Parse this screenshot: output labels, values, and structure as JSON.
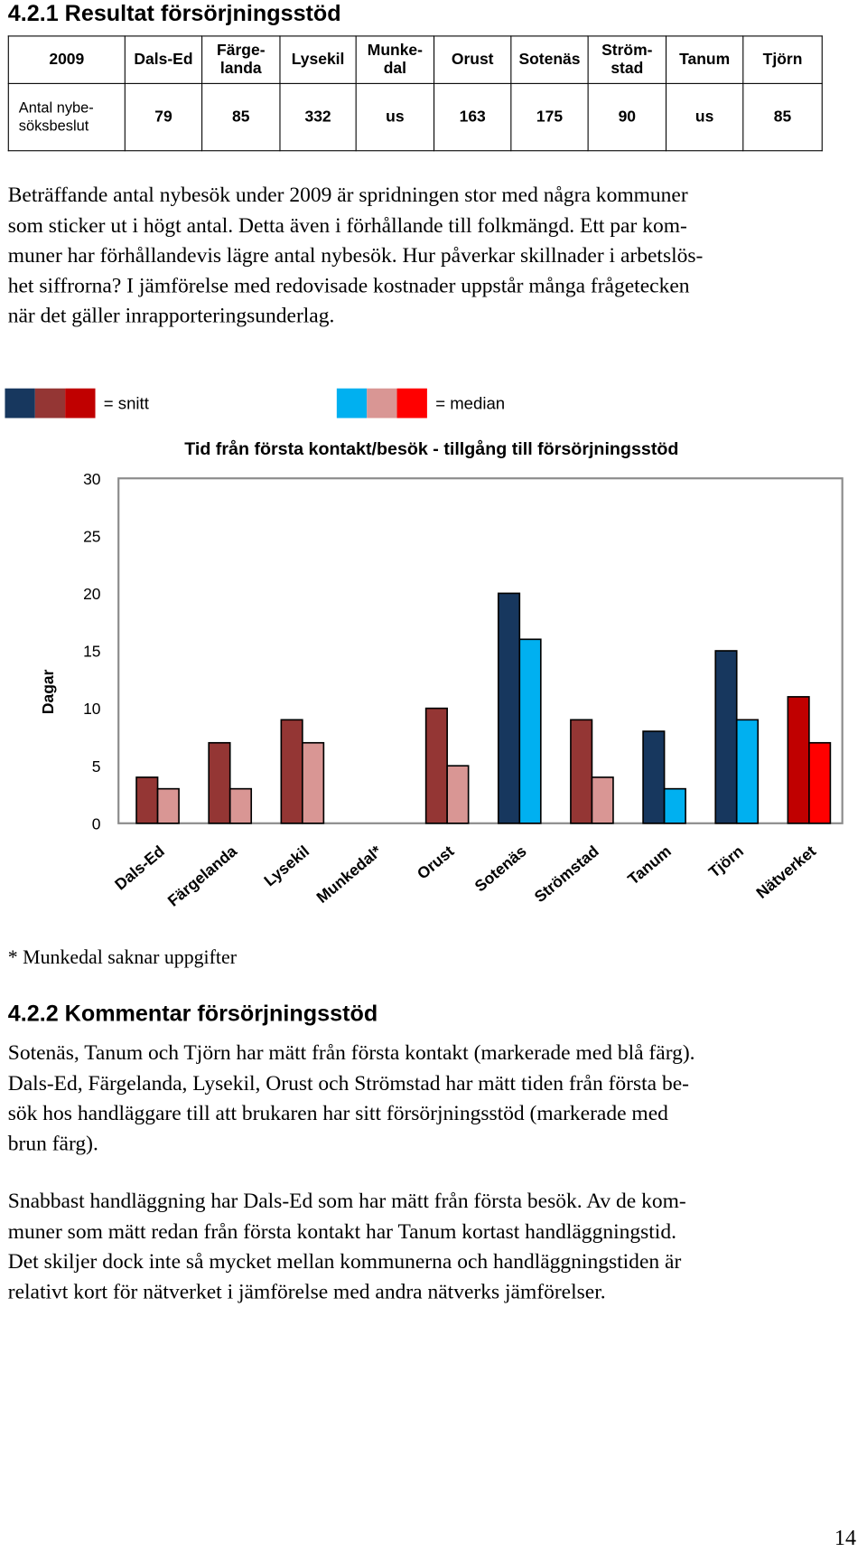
{
  "heading_1": "4.2.1 Resultat försörjningsstöd",
  "table": {
    "header": [
      "2009",
      "Dals-Ed",
      "Färge-\nlanda",
      "Lysekil",
      "Munke-\ndal",
      "Orust",
      "Sotenäs",
      "Ström-\nstad",
      "Tanum",
      "Tjörn"
    ],
    "rows": [
      [
        "Antal nybe-\nsöksbeslut",
        "79",
        "85",
        "332",
        "us",
        "163",
        "175",
        "90",
        "us",
        "85"
      ]
    ]
  },
  "paragraph_1": [
    "Beträffande antal nybesök under 2009 är spridningen stor med några kommuner",
    "som sticker ut i högt antal. Detta även i förhållande till folkmängd. Ett par kom-",
    "muner har förhållandevis lägre antal nybesök. Hur påverkar skillnader i arbetslös-",
    "het siffrorna? I jämförelse med redovisade kostnader uppstår många frågetecken",
    "när det gäller inrapporteringsunderlag."
  ],
  "chart_data": {
    "type": "bar",
    "title": "Tid från första kontakt/besök - tillgång till försörjningsstöd",
    "y_label": "Dagar",
    "categories": [
      "Dals-Ed",
      "Färgelanda",
      "Lysekil",
      "Munkedal*",
      "Orust",
      "Sotenäs",
      "Strömstad",
      "Tanum",
      "Tjörn",
      "Nätverket"
    ],
    "series": [
      {
        "name": "= snitt",
        "legend_colors": [
          "#17375e",
          "#943634",
          "#c00000"
        ],
        "colors": [
          "#943634",
          "#943634",
          "#943634",
          "#943634",
          "#943634",
          "#17375e",
          "#943634",
          "#17375e",
          "#17375e",
          "#c00000"
        ],
        "values": [
          4,
          7,
          9,
          null,
          10,
          20,
          9,
          8,
          15,
          11
        ]
      },
      {
        "name": "= median",
        "legend_colors": [
          "#00b0f0",
          "#d99694",
          "#ff0000"
        ],
        "colors": [
          "#d99694",
          "#d99694",
          "#d99694",
          "#d99694",
          "#d99694",
          "#00b0f0",
          "#d99694",
          "#00b0f0",
          "#00b0f0",
          "#ff0000"
        ],
        "values": [
          3,
          3,
          7,
          null,
          5,
          16,
          4,
          3,
          9,
          7
        ]
      }
    ],
    "ylim": [
      0,
      30
    ],
    "yticks": [
      0,
      5,
      10,
      15,
      20,
      25,
      30
    ],
    "grid": false
  },
  "footnote": "* Munkedal saknar uppgifter",
  "heading_2": "4.2.2 Kommentar försörjningsstöd",
  "paragraph_2": [
    "Sotenäs, Tanum och Tjörn har mätt från första kontakt (markerade med blå färg).",
    "Dals-Ed, Färgelanda, Lysekil, Orust och Strömstad har mätt tiden från första be-",
    "sök hos handläggare till att brukaren har sitt försörjningsstöd (markerade med",
    "brun färg)."
  ],
  "paragraph_3": [
    "Snabbast handläggning har Dals-Ed som har mätt från första besök. Av de kom-",
    "muner som mätt redan från första kontakt har Tanum kortast handläggningstid.",
    "Det skiljer dock inte så mycket mellan kommunerna och handläggningstiden är",
    "relativt kort för nätverket i jämförelse med andra nätverks jämförelser."
  ],
  "page_number": "14"
}
